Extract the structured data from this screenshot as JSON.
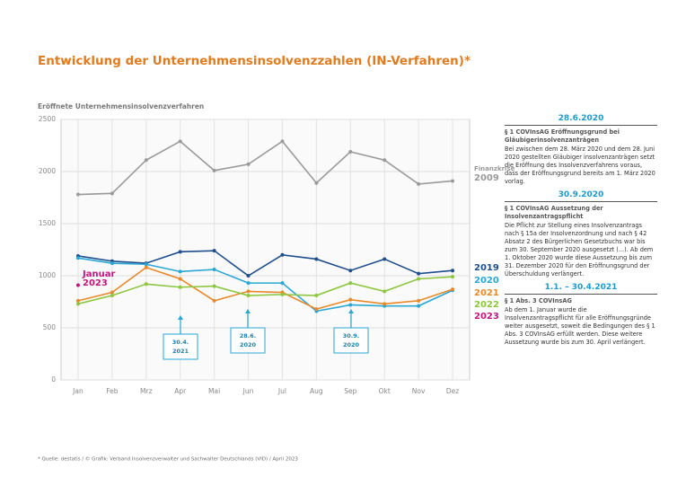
{
  "chart_data": {
    "type": "line",
    "title": "Entwicklung der Unternehmensinsolvenzzahlen (IN-Verfahren)*",
    "y_label": "Eröffnete Unternehmensinsolvenzverfahren",
    "categories": [
      "Jan",
      "Feb",
      "Mrz",
      "Apr",
      "Mai",
      "Jun",
      "Jul",
      "Aug",
      "Sep",
      "Okt",
      "Nov",
      "Dez"
    ],
    "series": [
      {
        "name": "2009",
        "color": "#9a9a9a",
        "values": [
          1780,
          1790,
          2110,
          2290,
          2010,
          2070,
          2290,
          1890,
          2190,
          2110,
          1880,
          1910
        ]
      },
      {
        "name": "2019",
        "color": "#1f4e8c",
        "values": [
          1190,
          1140,
          1120,
          1230,
          1240,
          1000,
          1200,
          1160,
          1050,
          1160,
          1020,
          1050
        ]
      },
      {
        "name": "2020",
        "color": "#2aa7d3",
        "values": [
          1170,
          1120,
          1110,
          1040,
          1060,
          930,
          930,
          660,
          720,
          710,
          710,
          860
        ]
      },
      {
        "name": "2021",
        "color": "#e8892b",
        "values": [
          760,
          840,
          1080,
          970,
          760,
          850,
          840,
          680,
          770,
          730,
          760,
          870
        ]
      },
      {
        "name": "2022",
        "color": "#8dc63f",
        "values": [
          730,
          810,
          920,
          890,
          900,
          810,
          820,
          810,
          930,
          850,
          970,
          990
        ]
      },
      {
        "name": "2023",
        "color": "#c3157f",
        "values": [
          910,
          null,
          null,
          null,
          null,
          null,
          null,
          null,
          null,
          null,
          null,
          null
        ]
      }
    ],
    "series_note": "Finanzkrise",
    "point_label": [
      "Januar",
      "2023"
    ],
    "ylim": [
      0,
      2500
    ],
    "yticks": [
      0,
      500,
      1000,
      1500,
      2000,
      2500
    ],
    "grid": true,
    "annotations": [
      [
        "30.4.",
        "2021"
      ],
      [
        "28.6.",
        "2020"
      ],
      [
        "30.9.",
        "2020"
      ]
    ],
    "footnote": "* Quelle: destatis / © Grafik: Verband Insolvenzverwalter und Sachwalter Deutschlands (VID) / April 2023"
  },
  "side_panel": [
    {
      "heading": "28.6.2020",
      "subheading": "§ 1 COVInsAG Eröffnungsgrund bei Gläubigerinsolvenzanträgen",
      "body": "Bei zwischen dem 28. März 2020 und dem 28. Juni 2020 gestellten Gläubiger insolvenzanträgen setzt die Eröffnung des Insolvenzverfahrens voraus, dass der Eröffnungsgrund bereits am 1. März 2020 vorlag."
    },
    {
      "heading": "30.9.2020",
      "subheading": "§ 1 COVInsAG Aussetzung der Insolvenzantragspflicht",
      "body": "Die Pflicht zur Stellung eines Insolvenzantrags nach § 15a der Insolvenzordnung und nach § 42 Absatz 2 des Bürgerlichen Gesetzbuchs war bis zum 30. September 2020 ausgesetzt (...). Ab dem 1. Oktober 2020 wurde diese Aussetzung bis zum 31. Dezember 2020 für den Eröffnungsgrund der Überschuldung verlängert."
    },
    {
      "heading": "1.1. – 30.4.2021",
      "subheading": "§ 1 Abs. 3 COVInsAG",
      "body": "Ab dem 1. Januar wurde die Insolvenzantragspflicht für alle Eröffnungsgründe weiter ausgesetzt, soweit die Bedingungen des § 1 Abs. 3 COVInsAG erfüllt werden. Diese weitere Aussetzung wurde bis zum 30. April verlängert."
    }
  ]
}
